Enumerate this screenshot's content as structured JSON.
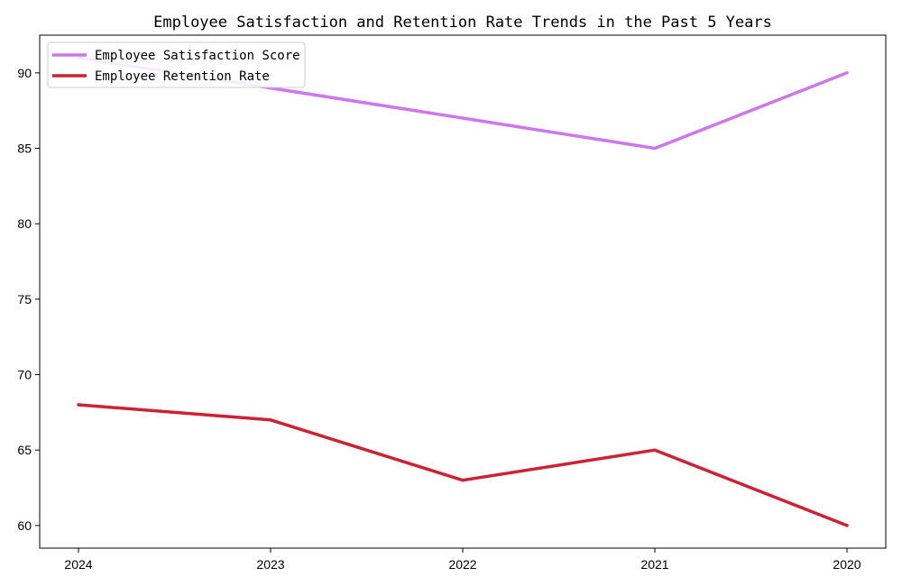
{
  "chart_data": {
    "type": "line",
    "title": "Employee Satisfaction and Retention Rate Trends in the Past 5 Years",
    "xlabel": "",
    "ylabel": "",
    "categories": [
      "2024",
      "2023",
      "2022",
      "2021",
      "2020"
    ],
    "series": [
      {
        "name": "Employee Satisfaction Score",
        "color": "#cc77ee",
        "values": [
          91,
          89,
          87,
          85,
          90
        ]
      },
      {
        "name": "Employee Retention Rate",
        "color": "#cc2233",
        "values": [
          68,
          67,
          63,
          65,
          60
        ]
      }
    ],
    "ylim": [
      58.5,
      92.5
    ],
    "yticks": [
      60,
      65,
      70,
      75,
      80,
      85,
      90
    ],
    "grid": false,
    "legend": "top-left"
  }
}
